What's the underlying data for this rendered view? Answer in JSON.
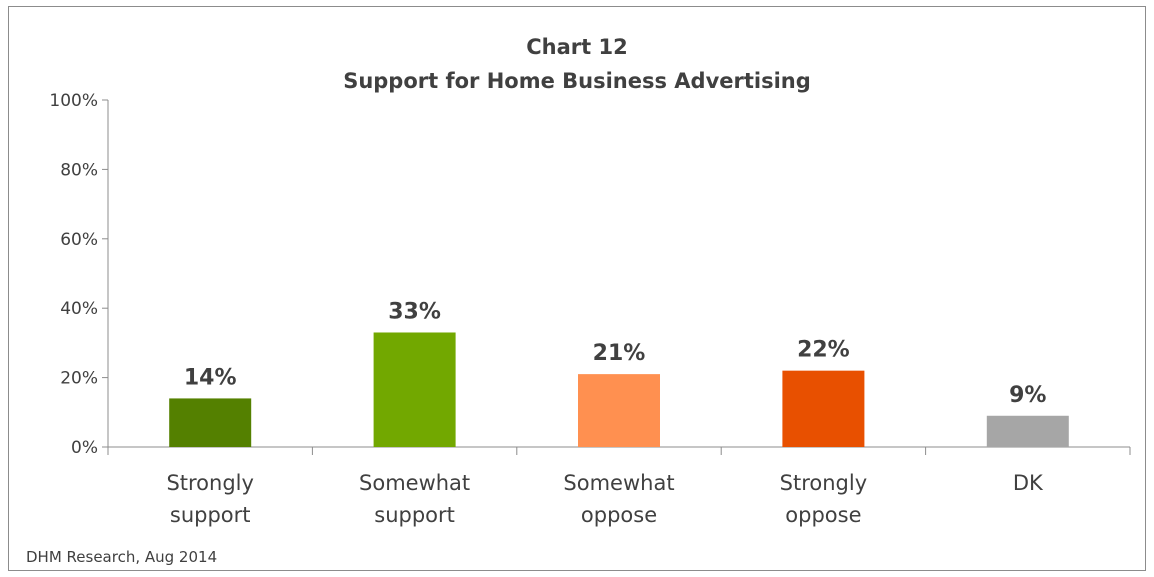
{
  "chart_data": {
    "type": "bar",
    "title": "Chart 12",
    "subtitle": "Support for Home Business Advertising",
    "categories": [
      [
        "Strongly",
        "support"
      ],
      [
        "Somewhat",
        "support"
      ],
      [
        "Somewhat",
        "oppose"
      ],
      [
        "Strongly",
        "oppose"
      ],
      [
        "DK"
      ]
    ],
    "values": [
      14,
      33,
      21,
      22,
      9
    ],
    "data_labels": [
      "14%",
      "33%",
      "21%",
      "22%",
      "9%"
    ],
    "colors": [
      "#548000",
      "#72A800",
      "#FF9050",
      "#E85000",
      "#A6A6A6"
    ],
    "ylim": [
      0,
      100
    ],
    "yticks": [
      0,
      20,
      40,
      60,
      80,
      100
    ],
    "ytick_labels": [
      "0%",
      "20%",
      "40%",
      "60%",
      "80%",
      "100%"
    ],
    "grid": false,
    "legend": "none",
    "xlabel": "",
    "ylabel": ""
  },
  "source_note": "DHM Research, Aug 2014"
}
